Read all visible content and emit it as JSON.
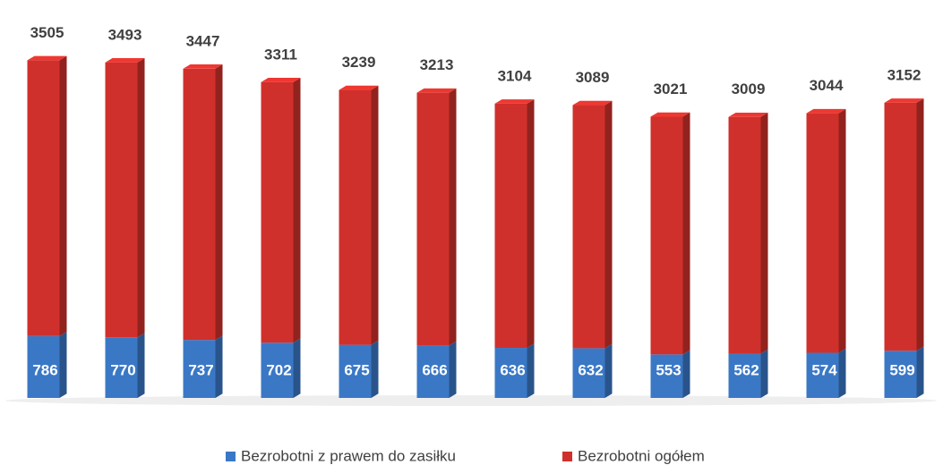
{
  "chart_data": {
    "type": "stacked_bar",
    "series": [
      {
        "name": "Bezrobotni z prawem do zasiłku",
        "color": "#3a78c6",
        "values": [
          786,
          770,
          737,
          702,
          675,
          666,
          636,
          632,
          553,
          562,
          574,
          599
        ]
      },
      {
        "name": "Bezrobotni ogółem",
        "color": "#d0302b",
        "values": [
          3505,
          3493,
          3447,
          3311,
          3239,
          3213,
          3104,
          3089,
          3021,
          3009,
          3044,
          3152
        ]
      }
    ],
    "ylim": [
      0,
      5000
    ],
    "legend": "bottom"
  }
}
